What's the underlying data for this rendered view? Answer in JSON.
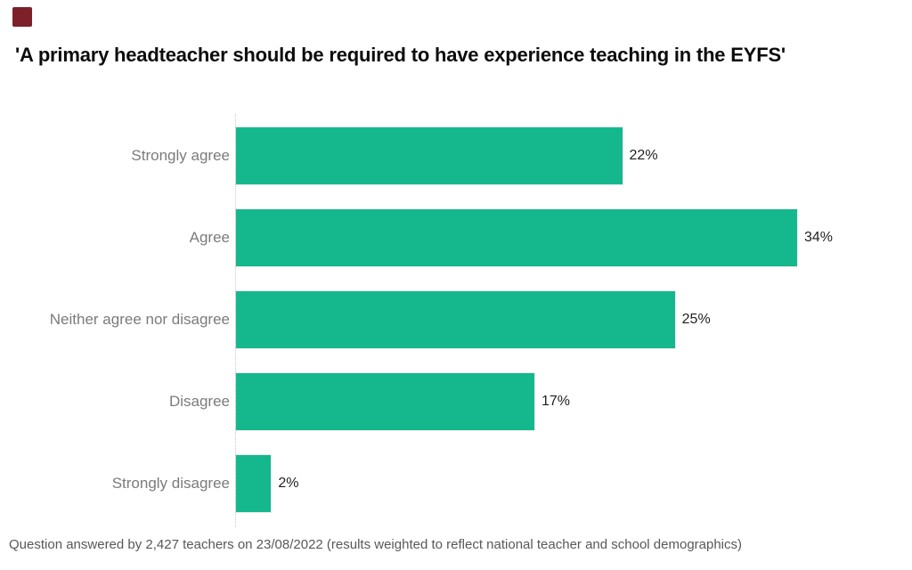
{
  "brand": {
    "logo_color": "#7d2029"
  },
  "header": {
    "title": "'A primary headteacher should be required to have experience teaching in the EYFS'"
  },
  "chart_data": {
    "type": "bar",
    "orientation": "horizontal",
    "title": "'A primary headteacher should be required to have experience teaching in the EYFS'",
    "categories": [
      "Strongly agree",
      "Agree",
      "Neither agree nor disagree",
      "Disagree",
      "Strongly disagree"
    ],
    "values": [
      22,
      34,
      25,
      17,
      2
    ],
    "value_labels": [
      "22%",
      "34%",
      "25%",
      "17%",
      "2%"
    ],
    "xlabel": "",
    "ylabel": "",
    "xlim": [
      0,
      34
    ],
    "bar_color": "#15b88c",
    "category_label_color": "#7b7b7b",
    "value_label_color": "#1f1f1f",
    "grid": "zero-axis dotted line only",
    "legend": "none"
  },
  "footer": {
    "note": "Question answered by 2,427 teachers on 23/08/2022 (results weighted to reflect national teacher and school demographics)"
  }
}
